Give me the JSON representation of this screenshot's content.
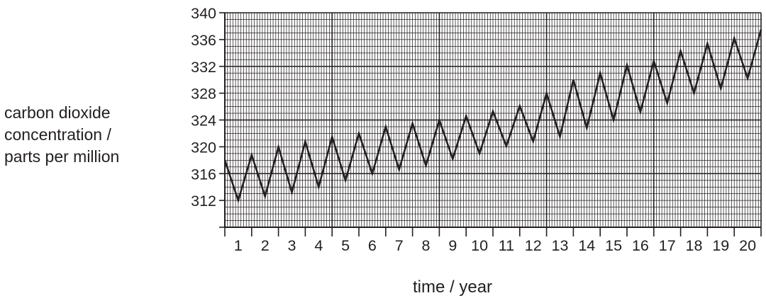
{
  "chart_data": {
    "type": "line",
    "title": "",
    "ylabel_lines": [
      "carbon dioxide",
      "concentration /",
      "parts per million"
    ],
    "xlabel": "time / year",
    "xlim": [
      0,
      20
    ],
    "ylim": [
      308,
      340
    ],
    "y_ticks": [
      312,
      316,
      320,
      324,
      328,
      332,
      336,
      340
    ],
    "x_tick_labels": [
      "1",
      "2",
      "3",
      "4",
      "5",
      "6",
      "7",
      "8",
      "9",
      "10",
      "11",
      "12",
      "13",
      "14",
      "15",
      "16",
      "17",
      "18",
      "19",
      "20"
    ],
    "grid": true,
    "series": [
      {
        "x": [
          0,
          0.5,
          1.0,
          1.5,
          2.0,
          2.5,
          3.0,
          3.5,
          4.0,
          4.5,
          5.0,
          5.5,
          6.0,
          6.5,
          7.0,
          7.5,
          8.0,
          8.5,
          9.0,
          9.5,
          10.0,
          10.5,
          11.0,
          11.5,
          12.0,
          12.5,
          13.0,
          13.5,
          14.0,
          14.5,
          15.0,
          15.5,
          16.0,
          16.5,
          17.0,
          17.5,
          18.0,
          18.5,
          19.0,
          19.5,
          20.0
        ],
        "y": [
          318,
          312,
          318.8,
          312.6,
          320,
          313.2,
          320.8,
          314,
          321.5,
          315,
          322,
          316,
          323,
          316.6,
          323.5,
          317.2,
          324,
          318.2,
          324.6,
          319,
          325.3,
          320.1,
          326.1,
          320.8,
          328,
          321.5,
          330,
          322.8,
          331,
          324,
          332.2,
          325.2,
          332.8,
          326.5,
          334.3,
          328,
          335.4,
          328.7,
          336.2,
          330.2,
          337.5
        ]
      }
    ]
  }
}
